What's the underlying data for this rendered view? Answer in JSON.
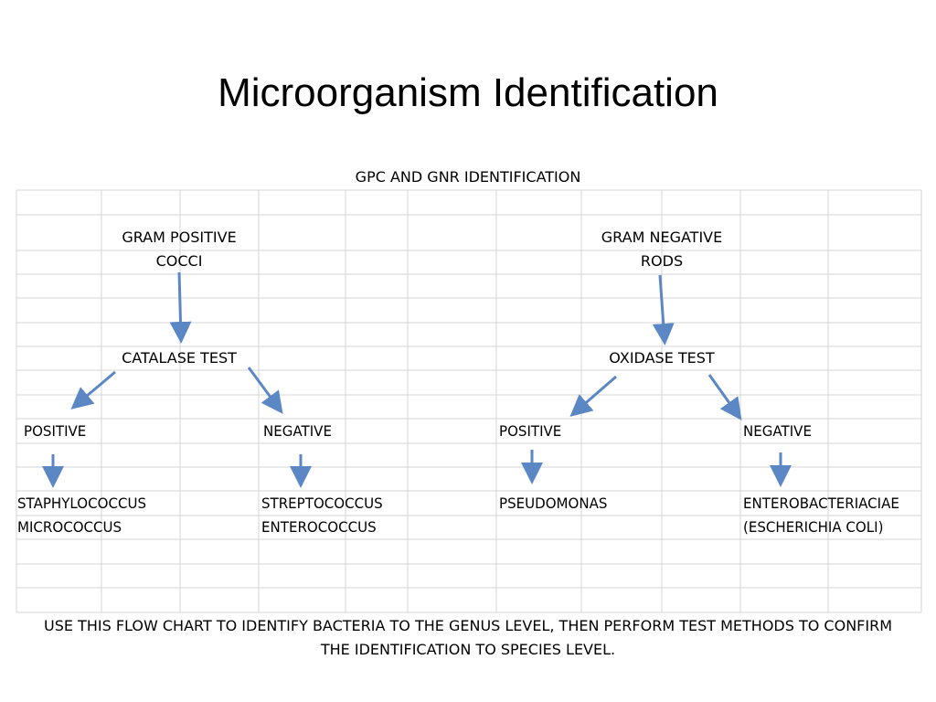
{
  "slide": {
    "title": "Microorganism Identification"
  },
  "flowchart": {
    "header": "GPC AND GNR IDENTIFICATION",
    "gram_positive": {
      "label_line1": "GRAM POSITIVE",
      "label_line2": "COCCI",
      "test": "CATALASE TEST",
      "positive": {
        "label": "POSITIVE",
        "genera": [
          "STAPHYLOCOCCUS",
          "MICROCOCCUS"
        ]
      },
      "negative": {
        "label": "NEGATIVE",
        "genera": [
          "STREPTOCOCCUS",
          "ENTEROCOCCUS"
        ]
      }
    },
    "gram_negative": {
      "label_line1": "GRAM NEGATIVE",
      "label_line2": "RODS",
      "test": "OXIDASE TEST",
      "positive": {
        "label": "POSITIVE",
        "genera": [
          "PSEUDOMONAS"
        ]
      },
      "negative": {
        "label": "NEGATIVE",
        "genera": [
          "ENTEROBACTERIACIAE",
          "(ESCHERICHIA COLI)"
        ]
      }
    },
    "note_line1": "USE THIS FLOW CHART TO IDENTIFY BACTERIA TO THE GENUS LEVEL, THEN PERFORM TEST METHODS TO CONFIRM",
    "note_line2": "THE IDENTIFICATION TO SPECIES LEVEL."
  },
  "colors": {
    "arrow": "#5b87c4",
    "gridline": "#d4d4d4"
  }
}
